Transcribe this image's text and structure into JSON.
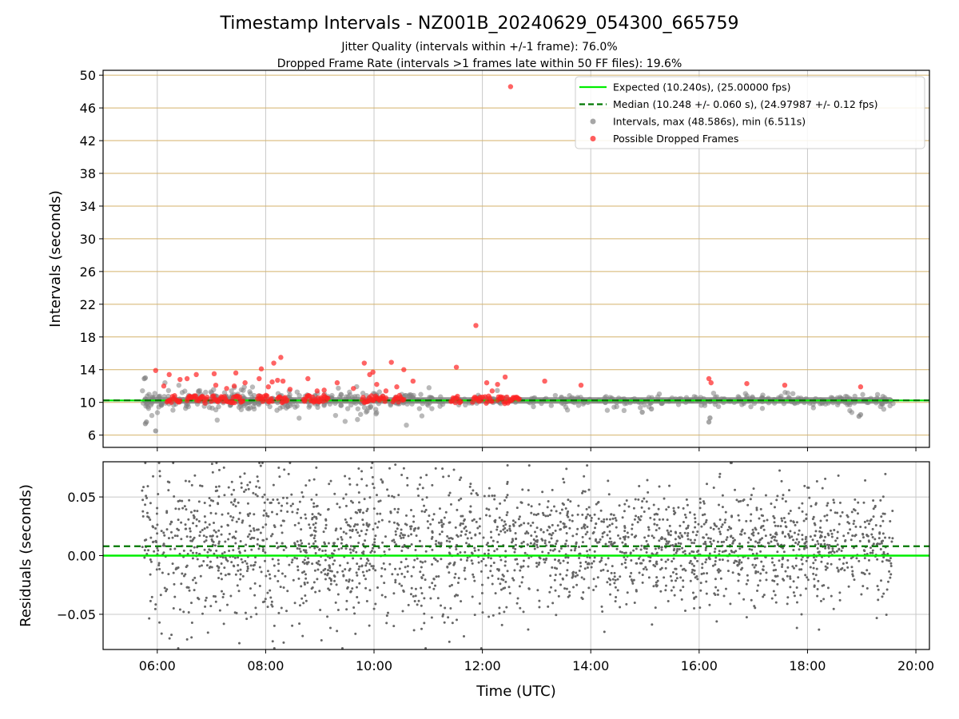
{
  "figure": {
    "title": "Timestamp Intervals - NZ001B_20240629_054300_665759",
    "subtitle_1": "Jitter Quality (intervals within +/-1 frame): 76.0%",
    "subtitle_2": "Dropped Frame Rate (intervals >1 frames late within 50 FF files): 19.6%"
  },
  "colors": {
    "expected": "#00ee00",
    "median": "#007700",
    "intervals": "#808080",
    "dropped": "#ff2222",
    "hgrid_top": "#d4b26a",
    "grid": "#c8c8c8",
    "residuals": "#666666"
  },
  "legend": {
    "placement": "upper-right",
    "items": [
      {
        "label": "Expected (10.240s), (25.00000 fps)",
        "kind": "line",
        "color": "#00ee00",
        "dash": false
      },
      {
        "label": "Median (10.248 +/- 0.060 s), (24.97987 +/- 0.12 fps)",
        "kind": "line",
        "color": "#007700",
        "dash": true
      },
      {
        "label": "Intervals, max (48.586s), min (6.511s)",
        "kind": "dot",
        "color": "#909090"
      },
      {
        "label": "Possible Dropped Frames",
        "kind": "dot",
        "color": "#ff3333"
      }
    ]
  },
  "chart_data": [
    {
      "type": "scatter",
      "panel": "intervals",
      "ylabel": "Intervals (seconds)",
      "xlabel": "",
      "xlim": [
        5.0,
        20.25
      ],
      "ylim": [
        4.5,
        50.6
      ],
      "x_ticks": [
        6,
        8,
        10,
        12,
        14,
        16,
        18,
        20
      ],
      "y_ticks": [
        6,
        10,
        14,
        18,
        22,
        26,
        30,
        34,
        38,
        42,
        46,
        50
      ],
      "y_tick_labels": [
        "6",
        "10",
        "14",
        "18",
        "22",
        "26",
        "30",
        "34",
        "38",
        "42",
        "46",
        "50"
      ],
      "expected": 10.24,
      "median": 10.248,
      "series": [
        {
          "name": "Intervals, max (48.586s), min (6.511s)",
          "x_range": [
            5.72,
            19.58
          ],
          "baseline": 10.24,
          "min": 6.511,
          "max": 48.586
        },
        {
          "name": "Possible Dropped Frames",
          "points": [
            [
              5.97,
              13.9
            ],
            [
              6.12,
              12.0
            ],
            [
              6.22,
              13.4
            ],
            [
              6.42,
              12.8
            ],
            [
              6.55,
              12.9
            ],
            [
              6.72,
              13.4
            ],
            [
              7.05,
              13.5
            ],
            [
              7.08,
              12.1
            ],
            [
              7.28,
              11.7
            ],
            [
              7.42,
              12.0
            ],
            [
              7.45,
              13.6
            ],
            [
              7.62,
              12.4
            ],
            [
              7.88,
              12.9
            ],
            [
              7.92,
              14.1
            ],
            [
              8.05,
              11.9
            ],
            [
              8.12,
              12.5
            ],
            [
              8.15,
              14.8
            ],
            [
              8.22,
              12.7
            ],
            [
              8.28,
              15.5
            ],
            [
              8.32,
              12.6
            ],
            [
              8.45,
              11.6
            ],
            [
              8.78,
              12.9
            ],
            [
              8.95,
              11.4
            ],
            [
              9.08,
              11.5
            ],
            [
              9.32,
              12.4
            ],
            [
              9.62,
              11.7
            ],
            [
              9.82,
              14.8
            ],
            [
              9.92,
              13.4
            ],
            [
              9.98,
              13.7
            ],
            [
              10.05,
              12.2
            ],
            [
              10.22,
              11.4
            ],
            [
              10.32,
              14.9
            ],
            [
              10.42,
              11.9
            ],
            [
              10.55,
              14.0
            ],
            [
              10.72,
              12.6
            ],
            [
              11.52,
              14.3
            ],
            [
              11.88,
              19.4
            ],
            [
              12.08,
              12.4
            ],
            [
              12.18,
              11.4
            ],
            [
              12.28,
              12.2
            ],
            [
              12.42,
              13.1
            ],
            [
              12.52,
              48.6
            ],
            [
              13.15,
              12.6
            ],
            [
              13.82,
              12.1
            ],
            [
              16.18,
              12.9
            ],
            [
              16.22,
              12.4
            ],
            [
              16.88,
              12.3
            ],
            [
              17.58,
              12.1
            ],
            [
              18.98,
              11.9
            ]
          ],
          "clusters": [
            {
              "x_start": 6.18,
              "x_end": 6.42,
              "y": 10.4
            },
            {
              "x_start": 6.55,
              "x_end": 6.92,
              "y": 10.35
            },
            {
              "x_start": 7.0,
              "x_end": 7.3,
              "y": 10.4
            },
            {
              "x_start": 7.35,
              "x_end": 7.58,
              "y": 10.4
            },
            {
              "x_start": 7.85,
              "x_end": 8.12,
              "y": 10.45
            },
            {
              "x_start": 8.22,
              "x_end": 8.4,
              "y": 10.4
            },
            {
              "x_start": 8.7,
              "x_end": 9.15,
              "y": 10.45
            },
            {
              "x_start": 9.78,
              "x_end": 10.22,
              "y": 10.45
            },
            {
              "x_start": 10.35,
              "x_end": 10.55,
              "y": 10.4
            },
            {
              "x_start": 11.42,
              "x_end": 11.6,
              "y": 10.35
            },
            {
              "x_start": 11.82,
              "x_end": 12.0,
              "y": 10.35
            },
            {
              "x_start": 12.05,
              "x_end": 12.18,
              "y": 10.35
            },
            {
              "x_start": 12.28,
              "x_end": 12.68,
              "y": 10.3
            }
          ]
        }
      ]
    },
    {
      "type": "scatter",
      "panel": "residuals",
      "ylabel": "Residuals (seconds)",
      "xlabel": "Time (UTC)",
      "xlim": [
        5.0,
        20.25
      ],
      "ylim": [
        -0.08,
        0.08
      ],
      "x_ticks": [
        6,
        8,
        10,
        12,
        14,
        16,
        18,
        20
      ],
      "x_tick_labels": [
        "06:00",
        "08:00",
        "10:00",
        "12:00",
        "14:00",
        "16:00",
        "18:00",
        "20:00"
      ],
      "y_ticks": [
        0.05,
        0.0,
        -0.05
      ],
      "y_tick_labels": [
        "0.05",
        "0.00",
        "−0.05"
      ],
      "expected": 0.0,
      "median": 0.008,
      "series": [
        {
          "name": "Residuals",
          "x_range": [
            5.72,
            19.58
          ],
          "y_range": [
            -0.08,
            0.08
          ]
        }
      ]
    }
  ]
}
